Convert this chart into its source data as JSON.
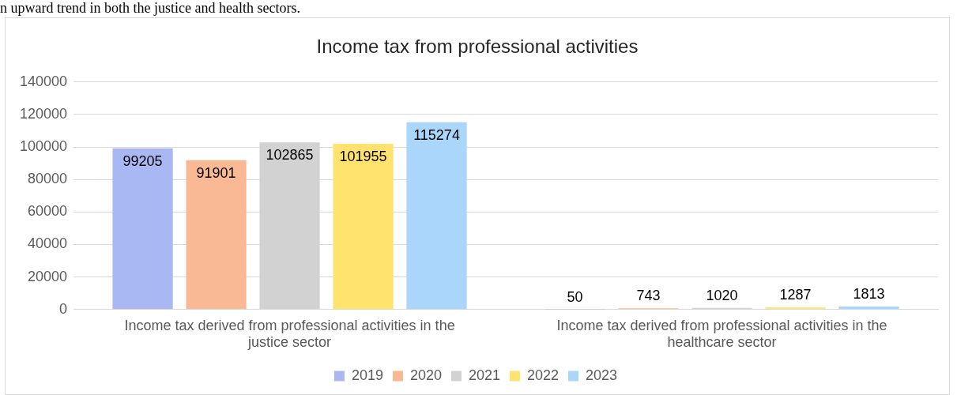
{
  "chart_data": {
    "type": "bar",
    "title": "Income tax from professional activities",
    "categories": [
      "Income tax derived from professional activities in the justice sector",
      "Income tax derived from professional activities in the healthcare sector"
    ],
    "series": [
      {
        "name": "2019",
        "color": "#a9b8f2",
        "values": [
          99205,
          50
        ]
      },
      {
        "name": "2020",
        "color": "#f9b995",
        "values": [
          91901,
          743
        ]
      },
      {
        "name": "2021",
        "color": "#d2d2d2",
        "values": [
          102865,
          1020
        ]
      },
      {
        "name": "2022",
        "color": "#ffe36e",
        "values": [
          101955,
          1287
        ]
      },
      {
        "name": "2023",
        "color": "#a9d6fa",
        "values": [
          115274,
          1813
        ]
      }
    ],
    "ylim": [
      0,
      140000
    ],
    "yticks": [
      0,
      20000,
      40000,
      60000,
      80000,
      100000,
      120000,
      140000
    ],
    "grid": "y",
    "legend": "bottom",
    "data_labels": true,
    "annotations": [
      "n upward trend in both the justice and health sectors."
    ]
  }
}
